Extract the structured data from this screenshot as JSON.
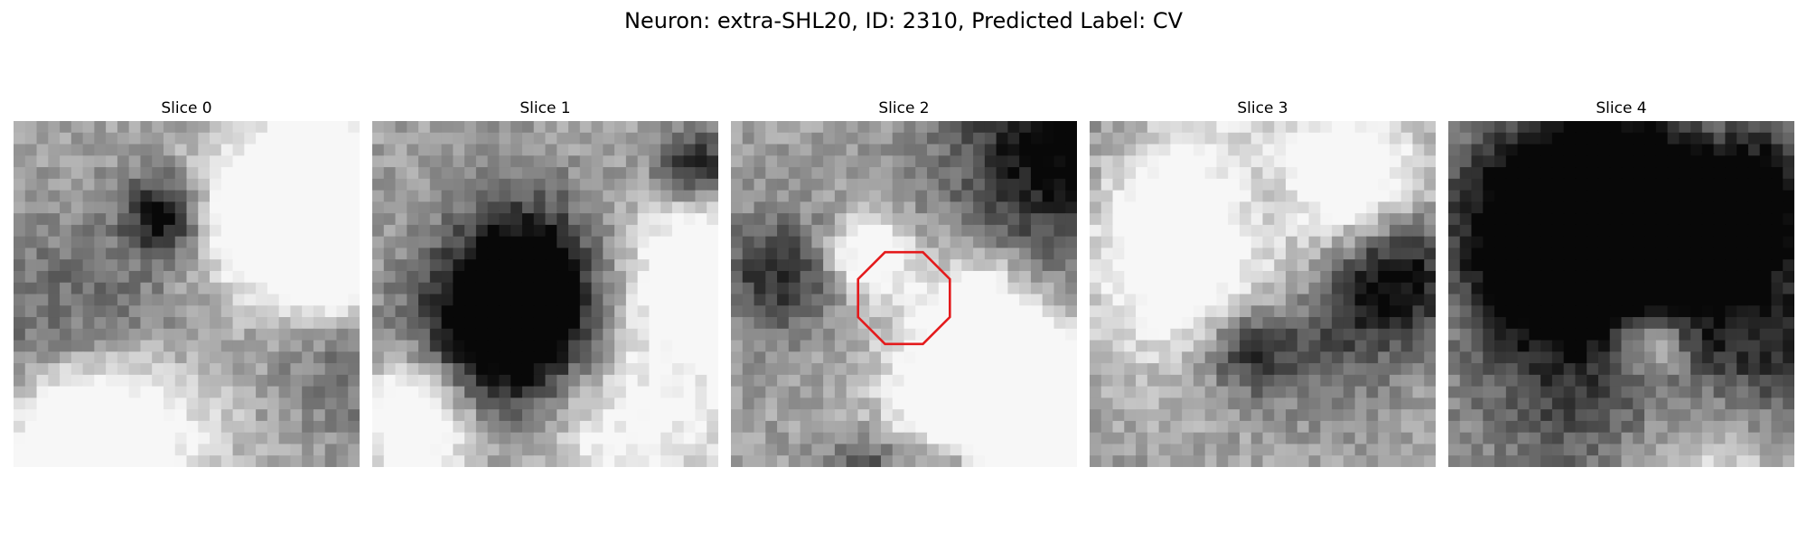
{
  "figure": {
    "title": "Neuron: extra-SHL20, ID: 2310, Predicted Label: CV"
  },
  "panels": [
    {
      "title": "Slice 0",
      "seed": 11,
      "has_roi": false
    },
    {
      "title": "Slice 1",
      "seed": 23,
      "has_roi": false
    },
    {
      "title": "Slice 2",
      "seed": 37,
      "has_roi": true
    },
    {
      "title": "Slice 3",
      "seed": 51,
      "has_roi": false
    },
    {
      "title": "Slice 4",
      "seed": 67,
      "has_roi": false
    }
  ],
  "roi": {
    "shape": "octagon",
    "color": "#e41a1c"
  },
  "colormap": "gray"
}
